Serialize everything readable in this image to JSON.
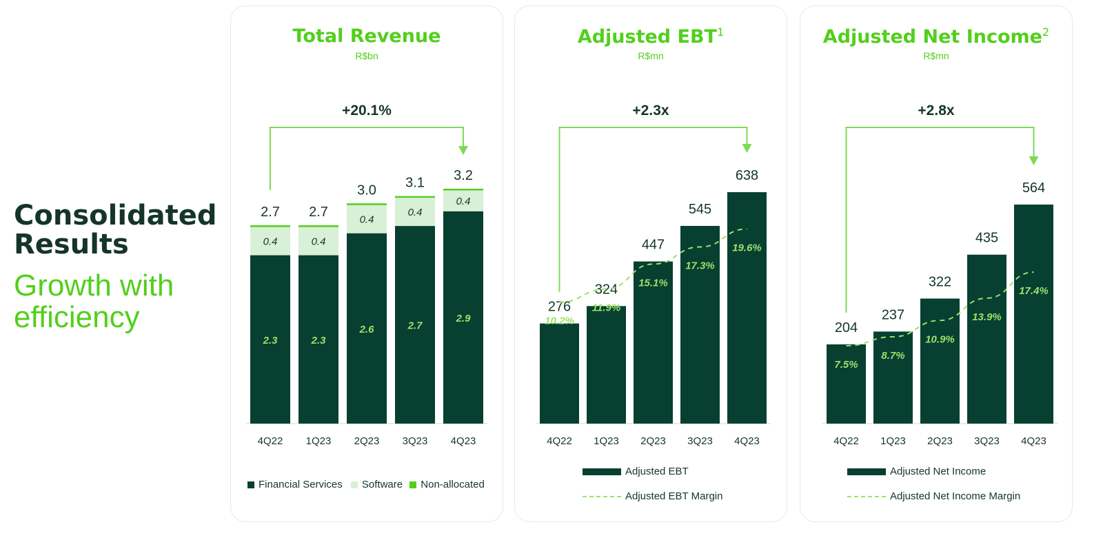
{
  "side": {
    "title": "Consolidated Results",
    "title_line1": "Consolidated",
    "title_line2": "Results",
    "subtitle_line1": "Growth with",
    "subtitle_line2": "efficiency"
  },
  "colors": {
    "dark": "#073f31",
    "light": "#d8f0d6",
    "accent": "#52cf1c",
    "margin_line": "#9ee06a",
    "text": "#15352a"
  },
  "chart_data": [
    {
      "type": "bar",
      "title": "Total Revenue",
      "unit": "R$bn",
      "growth_label": "+20.1%",
      "stacked": true,
      "categories": [
        "4Q22",
        "1Q23",
        "2Q23",
        "3Q23",
        "4Q23"
      ],
      "series": [
        {
          "name": "Financial Services",
          "values": [
            2.3,
            2.3,
            2.6,
            2.7,
            2.9
          ],
          "labels": [
            "2.3",
            "2.3",
            "2.6",
            "2.7",
            "2.9"
          ],
          "color": "#073f31"
        },
        {
          "name": "Software",
          "values": [
            0.4,
            0.4,
            0.4,
            0.4,
            0.4
          ],
          "labels": [
            "0.4",
            "0.4",
            "0.4",
            "0.4",
            "0.4"
          ],
          "color": "#d8f0d6"
        },
        {
          "name": "Non-allocated",
          "values": [
            0.02,
            0.02,
            0.02,
            0.02,
            0.02
          ],
          "color": "#52cf1c"
        }
      ],
      "totals": [
        2.7,
        2.7,
        3.0,
        3.1,
        3.2
      ],
      "total_labels": [
        "2.7",
        "2.7",
        "3.0",
        "3.1",
        "3.2"
      ],
      "ylim": [
        0,
        3.2
      ]
    },
    {
      "type": "bar",
      "title": "Adjusted EBT",
      "footnote": "1",
      "unit": "R$mn",
      "growth_label": "+2.3x",
      "categories": [
        "4Q22",
        "1Q23",
        "2Q23",
        "3Q23",
        "4Q23"
      ],
      "series": [
        {
          "name": "Adjusted EBT",
          "values": [
            276,
            324,
            447,
            545,
            638
          ],
          "color": "#073f31"
        },
        {
          "name": "Adjusted EBT Margin",
          "type": "line",
          "values": [
            10.2,
            11.9,
            15.1,
            17.3,
            19.6
          ],
          "labels": [
            "10.2%",
            "11.9%",
            "15.1%",
            "17.3%",
            "19.6%"
          ],
          "color": "#9ee06a"
        }
      ],
      "ylim": [
        0,
        638
      ]
    },
    {
      "type": "bar",
      "title": "Adjusted Net Income",
      "footnote": "2",
      "unit": "R$mn",
      "growth_label": "+2.8x",
      "categories": [
        "4Q22",
        "1Q23",
        "2Q23",
        "3Q23",
        "4Q23"
      ],
      "series": [
        {
          "name": "Adjusted Net Income",
          "values": [
            204,
            237,
            322,
            435,
            564
          ],
          "color": "#073f31"
        },
        {
          "name": "Adjusted Net Income Margin",
          "type": "line",
          "values": [
            7.5,
            8.7,
            10.9,
            13.9,
            17.4
          ],
          "labels": [
            "7.5%",
            "8.7%",
            "10.9%",
            "13.9%",
            "17.4%"
          ],
          "color": "#9ee06a"
        }
      ],
      "ylim": [
        0,
        564
      ]
    }
  ]
}
